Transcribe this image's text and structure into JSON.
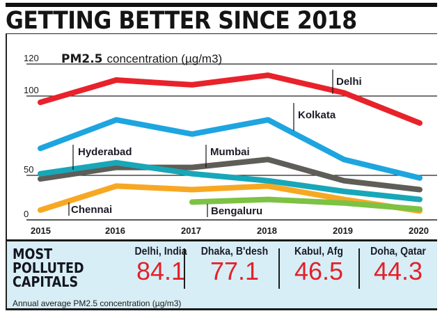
{
  "header": {
    "title": "GETTING BETTER SINCE 2018"
  },
  "chart_data": {
    "type": "line",
    "title": "PM2.5 concentration (µg/m3)",
    "title_bold_part": "PM2.5",
    "title_rest": "concentration (µg/m3)",
    "xlabel": "",
    "ylabel": "",
    "x": [
      2015,
      2016,
      2017,
      2018,
      2019,
      2020
    ],
    "x_tick_labels": [
      "2015",
      "2016",
      "2017",
      "2018",
      "2019",
      "2020"
    ],
    "y_ticks": [
      0,
      50,
      100,
      120
    ],
    "y_tick_labels": [
      "0",
      "50",
      "100",
      "120"
    ],
    "ylim": [
      0,
      120
    ],
    "grid": true,
    "legend": "inline-labels",
    "series": [
      {
        "name": "Delhi",
        "color": "#e8222b",
        "values": [
          96,
          110,
          107,
          113,
          102,
          83
        ]
      },
      {
        "name": "Kolkata",
        "color": "#1ea5e0",
        "values": [
          67,
          85,
          76,
          85,
          60,
          47
        ]
      },
      {
        "name": "Hyderabad",
        "color": "#17a7b8",
        "values": [
          51,
          58,
          51,
          44,
          32,
          23
        ]
      },
      {
        "name": "Mumbai",
        "color": "#5f5d57",
        "values": [
          46,
          55,
          55,
          60,
          44,
          34
        ]
      },
      {
        "name": "Chennai",
        "color": "#f7a823",
        "values": [
          11,
          38,
          34,
          38,
          23,
          10
        ]
      },
      {
        "name": "Bengaluru",
        "color": "#7dc243",
        "values": [
          null,
          null,
          20,
          23,
          19,
          12
        ]
      }
    ]
  },
  "panel": {
    "heading_lines": [
      "MOST",
      "POLLUTED",
      "CAPITALS"
    ],
    "subtitle": "Annual average PM2.5 concentration (µg/m3)",
    "capitals": [
      {
        "name": "Delhi, India",
        "value": "84.1"
      },
      {
        "name": "Dhaka, B'desh",
        "value": "77.1"
      },
      {
        "name": "Kabul, Afg",
        "value": "46.5"
      },
      {
        "name": "Doha, Qatar",
        "value": "44.3"
      }
    ],
    "value_color": "#e3202a"
  }
}
